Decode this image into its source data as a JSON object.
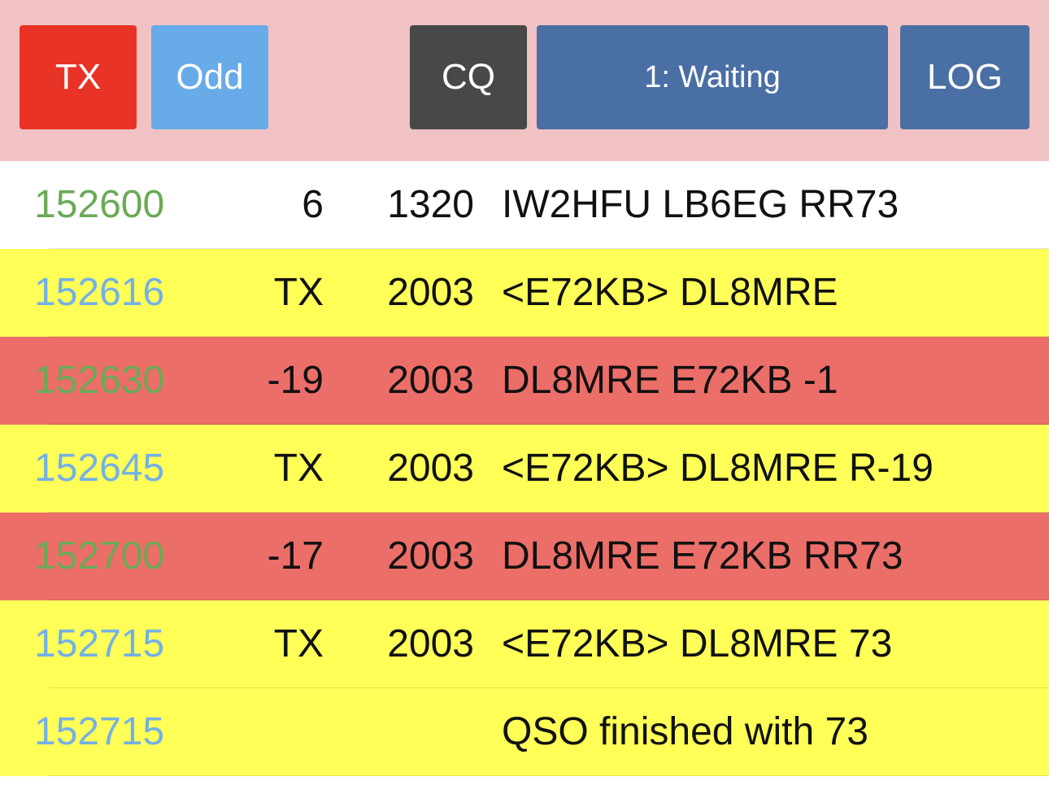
{
  "toolbar": {
    "tx_label": "TX",
    "parity_label": "Odd",
    "cq_label": "CQ",
    "state_label": "1: Waiting",
    "log_label": "LOG"
  },
  "colors": {
    "toolbar_bg": "#f0c2c3",
    "tx_button": "#e93326",
    "odd_button": "#67abe8",
    "cq_button": "#484848",
    "state_button": "#4a6fa5",
    "log_button": "#4a6fa5",
    "row_yellow": "#ffff57",
    "row_red": "#ec6e69",
    "time_green": "#6aaa55",
    "time_blue": "#74b0e6"
  },
  "rows": [
    {
      "time": "152600",
      "snr": "6",
      "freq": "1320",
      "message": "IW2HFU LB6EG RR73"
    },
    {
      "time": "152616",
      "snr": "TX",
      "freq": "2003",
      "message": "<E72KB> DL8MRE"
    },
    {
      "time": "152630",
      "snr": "-19",
      "freq": "2003",
      "message": "DL8MRE E72KB -1"
    },
    {
      "time": "152645",
      "snr": "TX",
      "freq": "2003",
      "message": "<E72KB> DL8MRE R-19"
    },
    {
      "time": "152700",
      "snr": "-17",
      "freq": "2003",
      "message": "DL8MRE E72KB RR73"
    },
    {
      "time": "152715",
      "snr": "TX",
      "freq": "2003",
      "message": "<E72KB> DL8MRE 73"
    },
    {
      "time": "152715",
      "snr": "",
      "freq": "",
      "message": "QSO finished with 73"
    }
  ]
}
